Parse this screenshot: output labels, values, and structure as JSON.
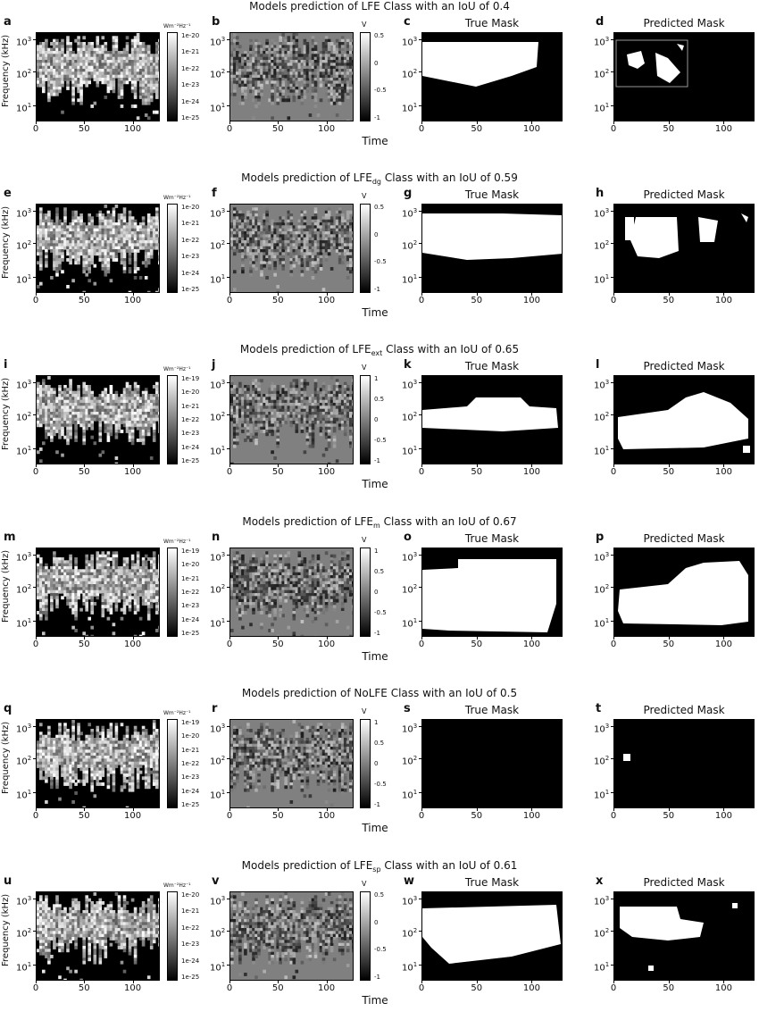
{
  "panel_titles": {
    "true_mask": "True Mask",
    "predicted_mask": "Predicted Mask"
  },
  "axes": {
    "y_label": "Frequency (kHz)",
    "x_label": "Time",
    "y_ticks": [
      "3",
      "2",
      "1"
    ],
    "x_ticks": [
      "0",
      "50",
      "100"
    ]
  },
  "colorbars": {
    "unit": "Wm⁻²Hz⁻¹",
    "v_label": "V",
    "v_ticks_a": [
      "0.5",
      "0",
      "-0.5",
      "-1"
    ],
    "v_ticks_b": [
      "1",
      "0.5",
      "0",
      "-0.5",
      "-1"
    ]
  },
  "rows": [
    {
      "title_pre": "Models prediction of LFE",
      "title_sub": "",
      "title_post": " Class with an IoU of 0.4",
      "labels": [
        "a",
        "b",
        "c",
        "d"
      ],
      "flux_ticks": [
        "1e-20",
        "1e-21",
        "1e-22",
        "1e-23",
        "1e-24",
        "1e-25"
      ],
      "v_set": "a"
    },
    {
      "title_pre": "Models prediction of LFE",
      "title_sub": "dg",
      "title_post": " Class with an IoU of 0.59",
      "labels": [
        "e",
        "f",
        "g",
        "h"
      ],
      "flux_ticks": [
        "1e-20",
        "1e-21",
        "1e-22",
        "1e-23",
        "1e-24",
        "1e-25"
      ],
      "v_set": "a"
    },
    {
      "title_pre": "Models prediction of LFE",
      "title_sub": "ext",
      "title_post": " Class with an IoU of 0.65",
      "labels": [
        "i",
        "j",
        "k",
        "l"
      ],
      "flux_ticks": [
        "1e-19",
        "1e-20",
        "1e-21",
        "1e-22",
        "1e-23",
        "1e-24",
        "1e-25"
      ],
      "v_set": "b"
    },
    {
      "title_pre": "Models prediction of LFE",
      "title_sub": "m",
      "title_post": " Class with an IoU of 0.67",
      "labels": [
        "m",
        "n",
        "o",
        "p"
      ],
      "flux_ticks": [
        "1e-19",
        "1e-20",
        "1e-21",
        "1e-22",
        "1e-23",
        "1e-24",
        "1e-25"
      ],
      "v_set": "b"
    },
    {
      "title_pre": "Models prediction of NoLFE",
      "title_sub": "",
      "title_post": " Class with an IoU of 0.5",
      "labels": [
        "q",
        "r",
        "s",
        "t"
      ],
      "flux_ticks": [
        "1e-19",
        "1e-20",
        "1e-21",
        "1e-22",
        "1e-23",
        "1e-24",
        "1e-25"
      ],
      "v_set": "b"
    },
    {
      "title_pre": "Models prediction of LFE",
      "title_sub": "sp",
      "title_post": " Class with an IoU of 0.61",
      "labels": [
        "u",
        "v",
        "w",
        "x"
      ],
      "flux_ticks": [
        "1e-20",
        "1e-21",
        "1e-22",
        "1e-23",
        "1e-24",
        "1e-25"
      ],
      "v_set": "a"
    }
  ]
}
